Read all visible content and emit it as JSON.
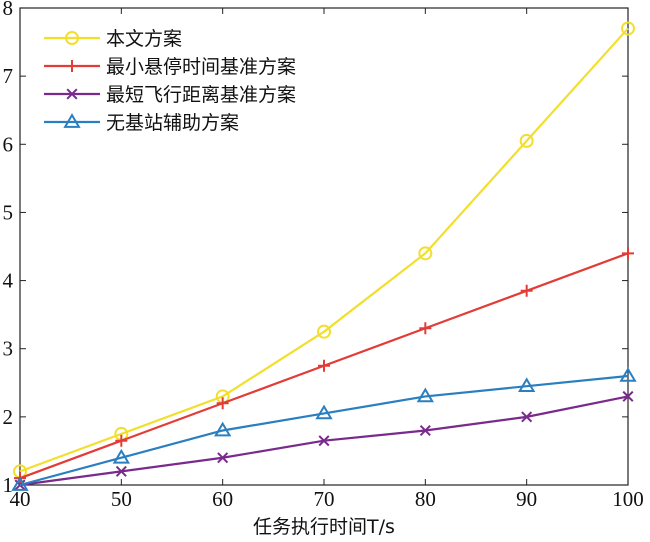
{
  "chart_data": {
    "type": "line",
    "title": "",
    "xlabel": "任务执行时间T/s",
    "ylabel": "",
    "x": [
      40,
      50,
      60,
      70,
      80,
      90,
      100
    ],
    "xlim": [
      40,
      100
    ],
    "ylim": [
      1,
      8
    ],
    "xticks": [
      "40",
      "50",
      "60",
      "70",
      "80",
      "90",
      "100"
    ],
    "yticks": [
      "1",
      "2",
      "3",
      "4",
      "5",
      "6",
      "7",
      "8"
    ],
    "grid": false,
    "legend_position": "top-left",
    "series": [
      {
        "name": "本文方案",
        "color": "#f2df2c",
        "marker": "circle",
        "values": [
          1.2,
          1.75,
          2.3,
          3.25,
          4.4,
          6.05,
          7.7
        ]
      },
      {
        "name": "最小悬停时间基准方案",
        "color": "#e33b36",
        "marker": "plus",
        "values": [
          1.1,
          1.65,
          2.2,
          2.75,
          3.3,
          3.85,
          4.4
        ]
      },
      {
        "name": "最短飞行距离基准方案",
        "color": "#7a2a8c",
        "marker": "x",
        "values": [
          1.0,
          1.2,
          1.4,
          1.65,
          1.8,
          2.0,
          2.3
        ]
      },
      {
        "name": "无基站辅助方案",
        "color": "#2a7fc0",
        "marker": "triangle",
        "values": [
          1.0,
          1.4,
          1.8,
          2.05,
          2.3,
          2.45,
          2.6
        ]
      }
    ]
  }
}
